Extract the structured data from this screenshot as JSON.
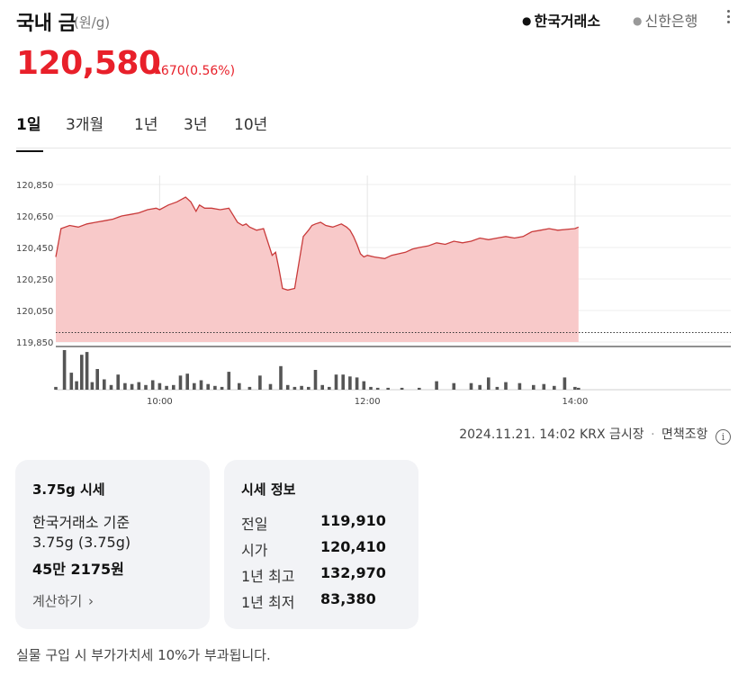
{
  "header": {
    "title": "국내 금",
    "unit": "(원/g)",
    "sources": [
      {
        "label": "한국거래소",
        "active": true
      },
      {
        "label": "신한은행",
        "active": false
      }
    ]
  },
  "price": {
    "value": "120,580",
    "change": "670",
    "change_pct": "(0.56%)",
    "direction": "up",
    "color": "#e8202a"
  },
  "tabs": [
    {
      "label": "1일",
      "active": true
    },
    {
      "label": "3개월",
      "active": false
    },
    {
      "label": "1년",
      "active": false
    },
    {
      "label": "3년",
      "active": false
    },
    {
      "label": "10년",
      "active": false
    }
  ],
  "chart_data": {
    "type": "area",
    "title": "",
    "y_ticks": [
      "120,850",
      "120,650",
      "120,450",
      "120,250",
      "120,050",
      "119,850"
    ],
    "ylim": [
      119850,
      120850
    ],
    "x_ticks": [
      "10:00",
      "12:00",
      "14:00"
    ],
    "xlim": [
      "09:00",
      "15:30"
    ],
    "reference_line": 119910,
    "fill_color": "#f8c9c9",
    "line_color": "#c93b3b",
    "series": [
      {
        "x": [
          "09:00",
          "09:03",
          "09:08",
          "09:13",
          "09:18",
          "09:23",
          "09:28",
          "09:33",
          "09:38",
          "09:43",
          "09:48",
          "09:53",
          "09:58",
          "10:00",
          "10:05",
          "10:10",
          "10:15",
          "10:18",
          "10:21",
          "10:23",
          "10:26",
          "10:30",
          "10:35",
          "10:40",
          "10:45",
          "10:48",
          "10:50",
          "10:52",
          "10:56",
          "11:00",
          "11:05",
          "11:07",
          "11:09",
          "11:11",
          "11:14",
          "11:18",
          "11:23",
          "11:26",
          "11:28",
          "11:30",
          "11:33",
          "11:36",
          "11:40",
          "11:45",
          "11:48",
          "11:50",
          "11:52",
          "11:54",
          "11:56",
          "11:58",
          "12:00",
          "12:04",
          "12:10",
          "12:14",
          "12:18",
          "12:22",
          "12:26",
          "12:30",
          "12:35",
          "12:40",
          "12:45",
          "12:50",
          "12:55",
          "13:00",
          "13:05",
          "13:10",
          "13:15",
          "13:20",
          "13:25",
          "13:30",
          "13:35",
          "13:40",
          "13:45",
          "13:50",
          "14:00",
          "14:02"
        ],
        "values": [
          120390,
          120570,
          120590,
          120580,
          120600,
          120610,
          120620,
          120630,
          120650,
          120660,
          120670,
          120690,
          120700,
          120690,
          120720,
          120740,
          120770,
          120740,
          120680,
          120720,
          120700,
          120700,
          120690,
          120700,
          120610,
          120590,
          120600,
          120580,
          120560,
          120570,
          120400,
          120420,
          120310,
          120190,
          120180,
          120190,
          120520,
          120560,
          120590,
          120600,
          120610,
          120590,
          120580,
          120600,
          120580,
          120560,
          120520,
          120470,
          120410,
          120390,
          120400,
          120390,
          120380,
          120400,
          120410,
          120420,
          120440,
          120450,
          120460,
          120480,
          120470,
          120490,
          120480,
          120490,
          120510,
          120500,
          120510,
          120520,
          120510,
          120520,
          120550,
          120560,
          120570,
          120560,
          120570,
          120580
        ]
      }
    ],
    "volume": {
      "x": [
        "09:00",
        "09:05",
        "09:09",
        "09:12",
        "09:15",
        "09:18",
        "09:21",
        "09:24",
        "09:28",
        "09:32",
        "09:36",
        "09:40",
        "09:44",
        "09:48",
        "09:52",
        "09:56",
        "10:00",
        "10:04",
        "10:08",
        "10:12",
        "10:16",
        "10:20",
        "10:24",
        "10:28",
        "10:32",
        "10:36",
        "10:40",
        "10:46",
        "10:52",
        "10:58",
        "11:04",
        "11:10",
        "11:14",
        "11:18",
        "11:22",
        "11:26",
        "11:30",
        "11:34",
        "11:38",
        "11:42",
        "11:46",
        "11:50",
        "11:54",
        "11:58",
        "12:02",
        "12:06",
        "12:12",
        "12:20",
        "12:30",
        "12:40",
        "12:50",
        "13:00",
        "13:05",
        "13:10",
        "13:15",
        "13:20",
        "13:28",
        "13:36",
        "13:42",
        "13:48",
        "13:54",
        "14:00",
        "14:02"
      ],
      "values": [
        3,
        42,
        18,
        9,
        37,
        40,
        8,
        22,
        11,
        5,
        16,
        7,
        6,
        8,
        5,
        10,
        7,
        4,
        5,
        15,
        17,
        7,
        10,
        6,
        4,
        3,
        19,
        7,
        3,
        15,
        6,
        25,
        5,
        3,
        4,
        3,
        21,
        5,
        3,
        16,
        16,
        14,
        13,
        9,
        3,
        2,
        2,
        2,
        2,
        9,
        7,
        7,
        5,
        13,
        3,
        8,
        7,
        5,
        6,
        4,
        13,
        3,
        2
      ]
    }
  },
  "meta": {
    "timestamp": "2024.11.21. 14:02 KRX 금시장",
    "disclaimer": "면책조항"
  },
  "card_price": {
    "title": "3.75g 시세",
    "basis": "한국거래소 기준",
    "weight": "3.75g (3.75g)",
    "amount": "45만 2175원",
    "calc_label": "계산하기"
  },
  "card_info": {
    "title": "시세 정보",
    "rows": [
      {
        "label": "전일",
        "value": "119,910"
      },
      {
        "label": "시가",
        "value": "120,410"
      },
      {
        "label": "1년 최고",
        "value": "132,970"
      },
      {
        "label": "1년 최저",
        "value": "83,380"
      }
    ]
  },
  "footer": {
    "vat_note": "실물 구입 시 부가가치세 10%가 부과됩니다."
  }
}
